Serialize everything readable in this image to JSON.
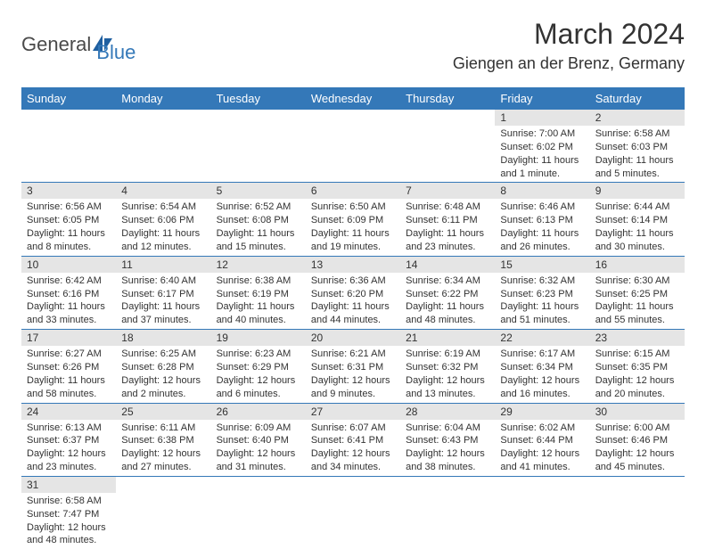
{
  "logo": {
    "text_general": "General",
    "text_blue": "Blue",
    "icon_color": "#1f5fa0"
  },
  "title": "March 2024",
  "location": "Giengen an der Brenz, Germany",
  "colors": {
    "header_bg": "#3478b8",
    "header_text": "#ffffff",
    "day_num_bg": "#e5e5e5",
    "border": "#3478b8",
    "body_text": "#333333"
  },
  "day_headers": [
    "Sunday",
    "Monday",
    "Tuesday",
    "Wednesday",
    "Thursday",
    "Friday",
    "Saturday"
  ],
  "weeks": [
    [
      null,
      null,
      null,
      null,
      null,
      {
        "n": "1",
        "sr": "Sunrise: 7:00 AM",
        "ss": "Sunset: 6:02 PM",
        "dl": "Daylight: 11 hours and 1 minute."
      },
      {
        "n": "2",
        "sr": "Sunrise: 6:58 AM",
        "ss": "Sunset: 6:03 PM",
        "dl": "Daylight: 11 hours and 5 minutes."
      }
    ],
    [
      {
        "n": "3",
        "sr": "Sunrise: 6:56 AM",
        "ss": "Sunset: 6:05 PM",
        "dl": "Daylight: 11 hours and 8 minutes."
      },
      {
        "n": "4",
        "sr": "Sunrise: 6:54 AM",
        "ss": "Sunset: 6:06 PM",
        "dl": "Daylight: 11 hours and 12 minutes."
      },
      {
        "n": "5",
        "sr": "Sunrise: 6:52 AM",
        "ss": "Sunset: 6:08 PM",
        "dl": "Daylight: 11 hours and 15 minutes."
      },
      {
        "n": "6",
        "sr": "Sunrise: 6:50 AM",
        "ss": "Sunset: 6:09 PM",
        "dl": "Daylight: 11 hours and 19 minutes."
      },
      {
        "n": "7",
        "sr": "Sunrise: 6:48 AM",
        "ss": "Sunset: 6:11 PM",
        "dl": "Daylight: 11 hours and 23 minutes."
      },
      {
        "n": "8",
        "sr": "Sunrise: 6:46 AM",
        "ss": "Sunset: 6:13 PM",
        "dl": "Daylight: 11 hours and 26 minutes."
      },
      {
        "n": "9",
        "sr": "Sunrise: 6:44 AM",
        "ss": "Sunset: 6:14 PM",
        "dl": "Daylight: 11 hours and 30 minutes."
      }
    ],
    [
      {
        "n": "10",
        "sr": "Sunrise: 6:42 AM",
        "ss": "Sunset: 6:16 PM",
        "dl": "Daylight: 11 hours and 33 minutes."
      },
      {
        "n": "11",
        "sr": "Sunrise: 6:40 AM",
        "ss": "Sunset: 6:17 PM",
        "dl": "Daylight: 11 hours and 37 minutes."
      },
      {
        "n": "12",
        "sr": "Sunrise: 6:38 AM",
        "ss": "Sunset: 6:19 PM",
        "dl": "Daylight: 11 hours and 40 minutes."
      },
      {
        "n": "13",
        "sr": "Sunrise: 6:36 AM",
        "ss": "Sunset: 6:20 PM",
        "dl": "Daylight: 11 hours and 44 minutes."
      },
      {
        "n": "14",
        "sr": "Sunrise: 6:34 AM",
        "ss": "Sunset: 6:22 PM",
        "dl": "Daylight: 11 hours and 48 minutes."
      },
      {
        "n": "15",
        "sr": "Sunrise: 6:32 AM",
        "ss": "Sunset: 6:23 PM",
        "dl": "Daylight: 11 hours and 51 minutes."
      },
      {
        "n": "16",
        "sr": "Sunrise: 6:30 AM",
        "ss": "Sunset: 6:25 PM",
        "dl": "Daylight: 11 hours and 55 minutes."
      }
    ],
    [
      {
        "n": "17",
        "sr": "Sunrise: 6:27 AM",
        "ss": "Sunset: 6:26 PM",
        "dl": "Daylight: 11 hours and 58 minutes."
      },
      {
        "n": "18",
        "sr": "Sunrise: 6:25 AM",
        "ss": "Sunset: 6:28 PM",
        "dl": "Daylight: 12 hours and 2 minutes."
      },
      {
        "n": "19",
        "sr": "Sunrise: 6:23 AM",
        "ss": "Sunset: 6:29 PM",
        "dl": "Daylight: 12 hours and 6 minutes."
      },
      {
        "n": "20",
        "sr": "Sunrise: 6:21 AM",
        "ss": "Sunset: 6:31 PM",
        "dl": "Daylight: 12 hours and 9 minutes."
      },
      {
        "n": "21",
        "sr": "Sunrise: 6:19 AM",
        "ss": "Sunset: 6:32 PM",
        "dl": "Daylight: 12 hours and 13 minutes."
      },
      {
        "n": "22",
        "sr": "Sunrise: 6:17 AM",
        "ss": "Sunset: 6:34 PM",
        "dl": "Daylight: 12 hours and 16 minutes."
      },
      {
        "n": "23",
        "sr": "Sunrise: 6:15 AM",
        "ss": "Sunset: 6:35 PM",
        "dl": "Daylight: 12 hours and 20 minutes."
      }
    ],
    [
      {
        "n": "24",
        "sr": "Sunrise: 6:13 AM",
        "ss": "Sunset: 6:37 PM",
        "dl": "Daylight: 12 hours and 23 minutes."
      },
      {
        "n": "25",
        "sr": "Sunrise: 6:11 AM",
        "ss": "Sunset: 6:38 PM",
        "dl": "Daylight: 12 hours and 27 minutes."
      },
      {
        "n": "26",
        "sr": "Sunrise: 6:09 AM",
        "ss": "Sunset: 6:40 PM",
        "dl": "Daylight: 12 hours and 31 minutes."
      },
      {
        "n": "27",
        "sr": "Sunrise: 6:07 AM",
        "ss": "Sunset: 6:41 PM",
        "dl": "Daylight: 12 hours and 34 minutes."
      },
      {
        "n": "28",
        "sr": "Sunrise: 6:04 AM",
        "ss": "Sunset: 6:43 PM",
        "dl": "Daylight: 12 hours and 38 minutes."
      },
      {
        "n": "29",
        "sr": "Sunrise: 6:02 AM",
        "ss": "Sunset: 6:44 PM",
        "dl": "Daylight: 12 hours and 41 minutes."
      },
      {
        "n": "30",
        "sr": "Sunrise: 6:00 AM",
        "ss": "Sunset: 6:46 PM",
        "dl": "Daylight: 12 hours and 45 minutes."
      }
    ],
    [
      {
        "n": "31",
        "sr": "Sunrise: 6:58 AM",
        "ss": "Sunset: 7:47 PM",
        "dl": "Daylight: 12 hours and 48 minutes."
      },
      null,
      null,
      null,
      null,
      null,
      null
    ]
  ]
}
